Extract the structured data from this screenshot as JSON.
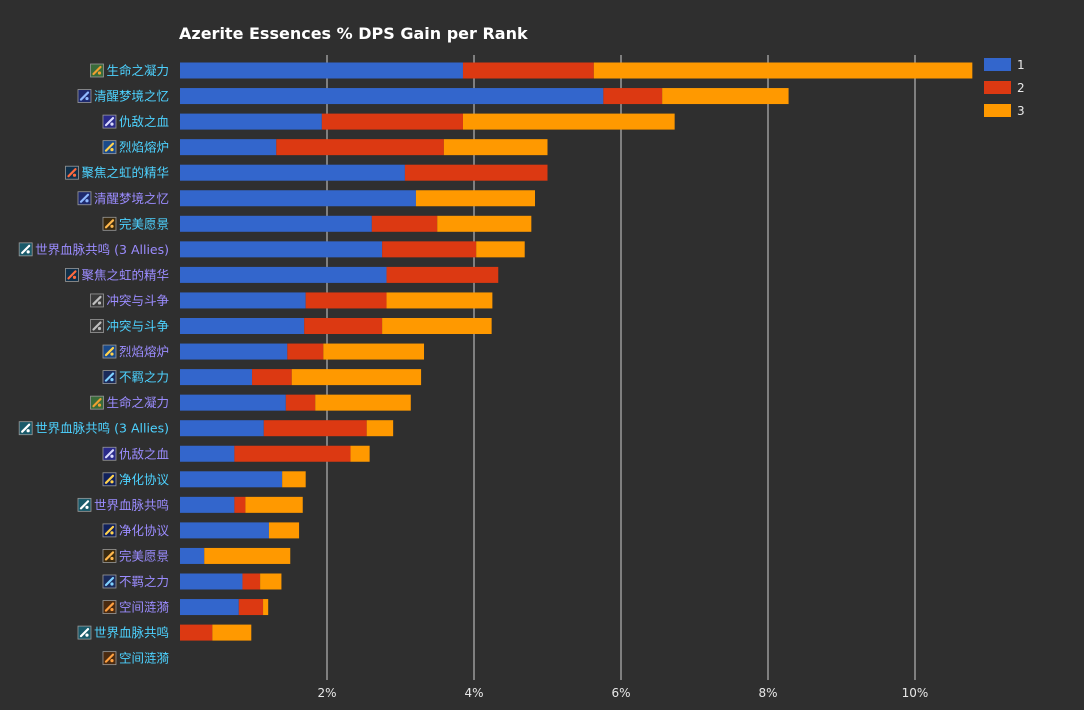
{
  "chart_data": {
    "type": "bar",
    "orientation": "horizontal",
    "stacked": true,
    "title": "Azerite Essences % DPS Gain per Rank",
    "xlabel": "",
    "ylabel": "",
    "xlim": [
      0,
      11
    ],
    "xticks": [
      2,
      4,
      6,
      8,
      10
    ],
    "xtick_labels": [
      "2%",
      "4%",
      "6%",
      "8%",
      "10%"
    ],
    "grid": true,
    "legend_position": "top-right",
    "colors": [
      "#3366cc",
      "#dc3912",
      "#ff9900"
    ],
    "label_colors": {
      "major": "#4dd2ff",
      "minor": "#9b8cff"
    },
    "categories": [
      {
        "label": "生命之凝力",
        "icon": "life-force-icon",
        "kind": "major"
      },
      {
        "label": "清醒梦境之忆",
        "icon": "lucid-dreams-icon",
        "kind": "major"
      },
      {
        "label": "仇敌之血",
        "icon": "blood-of-enemy-icon",
        "kind": "major"
      },
      {
        "label": "烈焰熔炉",
        "icon": "crucible-of-flame-icon",
        "kind": "major"
      },
      {
        "label": "聚焦之虹的精华",
        "icon": "focusing-iris-icon",
        "kind": "major"
      },
      {
        "label": "清醒梦境之忆",
        "icon": "lucid-dreams-icon",
        "kind": "minor"
      },
      {
        "label": "完美愿景",
        "icon": "vision-of-perfection-icon",
        "kind": "major"
      },
      {
        "label": "世界血脉共鸣 (3 Allies)",
        "icon": "worldvein-icon",
        "kind": "minor"
      },
      {
        "label": "聚焦之虹的精华",
        "icon": "focusing-iris-icon",
        "kind": "minor"
      },
      {
        "label": "冲突与斗争",
        "icon": "conflict-strife-icon",
        "kind": "minor"
      },
      {
        "label": "冲突与斗争",
        "icon": "conflict-strife-icon",
        "kind": "major"
      },
      {
        "label": "烈焰熔炉",
        "icon": "crucible-of-flame-icon",
        "kind": "minor"
      },
      {
        "label": "不羁之力",
        "icon": "unbound-force-icon",
        "kind": "major"
      },
      {
        "label": "生命之凝力",
        "icon": "life-force-icon",
        "kind": "minor"
      },
      {
        "label": "世界血脉共鸣 (3 Allies)",
        "icon": "worldvein-icon",
        "kind": "major"
      },
      {
        "label": "仇敌之血",
        "icon": "blood-of-enemy-icon",
        "kind": "minor"
      },
      {
        "label": "净化协议",
        "icon": "purification-protocol-icon",
        "kind": "major"
      },
      {
        "label": "世界血脉共鸣",
        "icon": "worldvein-icon",
        "kind": "minor"
      },
      {
        "label": "净化协议",
        "icon": "purification-protocol-icon",
        "kind": "minor"
      },
      {
        "label": "完美愿景",
        "icon": "vision-of-perfection-icon",
        "kind": "minor"
      },
      {
        "label": "不羁之力",
        "icon": "unbound-force-icon",
        "kind": "minor"
      },
      {
        "label": "空间涟漪",
        "icon": "ripple-in-space-icon",
        "kind": "minor"
      },
      {
        "label": "世界血脉共鸣",
        "icon": "worldvein-icon",
        "kind": "major"
      },
      {
        "label": "空间涟漪",
        "icon": "ripple-in-space-icon",
        "kind": "major"
      }
    ],
    "series": [
      {
        "name": "1",
        "values": [
          3.85,
          5.76,
          1.93,
          1.31,
          3.06,
          3.21,
          2.61,
          2.75,
          2.81,
          1.71,
          1.69,
          1.46,
          0.98,
          1.44,
          1.14,
          0.74,
          1.39,
          0.74,
          1.21,
          0.33,
          0.85,
          0.8,
          0.0,
          0.0
        ]
      },
      {
        "name": "2",
        "values": [
          1.78,
          0.8,
          1.92,
          2.28,
          1.94,
          0.0,
          0.89,
          1.28,
          1.52,
          1.1,
          1.06,
          0.49,
          0.54,
          0.4,
          1.4,
          1.58,
          0.0,
          0.15,
          0.0,
          0.0,
          0.24,
          0.33,
          0.44,
          0.0
        ]
      },
      {
        "name": "3",
        "values": [
          5.15,
          1.72,
          2.88,
          1.41,
          0.0,
          1.62,
          1.28,
          0.66,
          0.0,
          1.44,
          1.49,
          1.37,
          1.76,
          1.3,
          0.36,
          0.26,
          0.32,
          0.78,
          0.41,
          1.17,
          0.29,
          0.07,
          0.53,
          0.0
        ]
      }
    ]
  }
}
